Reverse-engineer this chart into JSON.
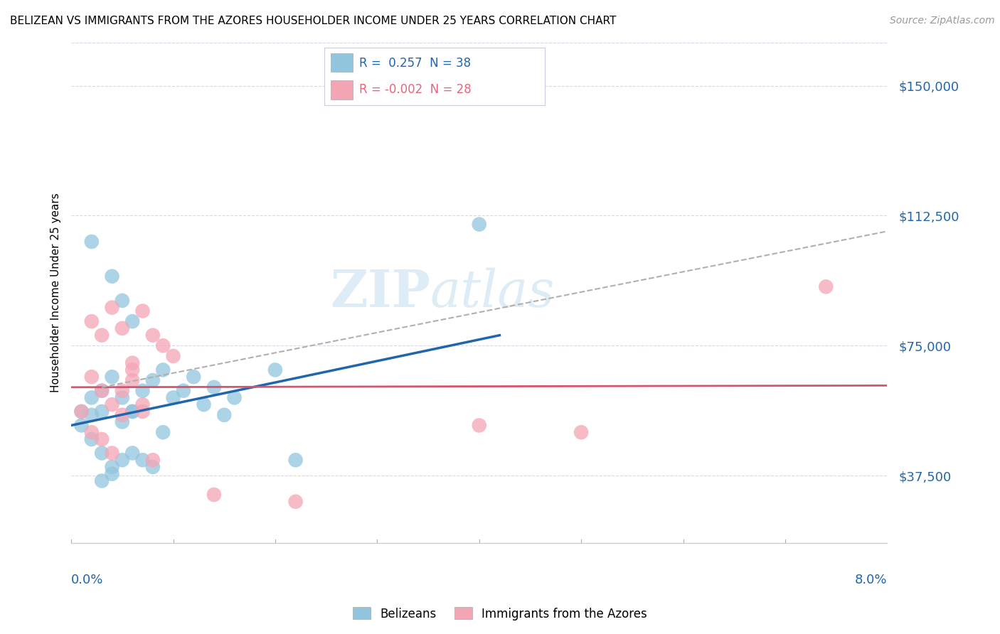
{
  "title": "BELIZEAN VS IMMIGRANTS FROM THE AZORES HOUSEHOLDER INCOME UNDER 25 YEARS CORRELATION CHART",
  "source": "Source: ZipAtlas.com",
  "ylabel": "Householder Income Under 25 years",
  "xmin": 0.0,
  "xmax": 0.08,
  "ymin": 18000,
  "ymax": 162500,
  "yticks": [
    37500,
    75000,
    112500,
    150000
  ],
  "ytick_labels": [
    "$37,500",
    "$75,000",
    "$112,500",
    "$150,000"
  ],
  "watermark_zip": "ZIP",
  "watermark_atlas": "atlas",
  "blue_color": "#92c5de",
  "blue_line_color": "#2166ac",
  "pink_color": "#f4a5b5",
  "pink_line_color": "#d6546e",
  "dashed_line_color": "#b0b0b0",
  "grid_color": "#d8d8e8",
  "belizean_points": [
    [
      0.001,
      56000
    ],
    [
      0.002,
      60000
    ],
    [
      0.003,
      62000
    ],
    [
      0.004,
      66000
    ],
    [
      0.005,
      60000
    ],
    [
      0.006,
      56000
    ],
    [
      0.007,
      62000
    ],
    [
      0.008,
      65000
    ],
    [
      0.009,
      68000
    ],
    [
      0.01,
      60000
    ],
    [
      0.011,
      62000
    ],
    [
      0.012,
      66000
    ],
    [
      0.013,
      58000
    ],
    [
      0.014,
      63000
    ],
    [
      0.015,
      55000
    ],
    [
      0.016,
      60000
    ],
    [
      0.002,
      105000
    ],
    [
      0.004,
      95000
    ],
    [
      0.005,
      88000
    ],
    [
      0.006,
      82000
    ],
    [
      0.001,
      52000
    ],
    [
      0.002,
      48000
    ],
    [
      0.003,
      44000
    ],
    [
      0.004,
      40000
    ],
    [
      0.002,
      55000
    ],
    [
      0.003,
      56000
    ],
    [
      0.005,
      53000
    ],
    [
      0.006,
      56000
    ],
    [
      0.003,
      36000
    ],
    [
      0.004,
      38000
    ],
    [
      0.005,
      42000
    ],
    [
      0.006,
      44000
    ],
    [
      0.007,
      42000
    ],
    [
      0.008,
      40000
    ],
    [
      0.009,
      50000
    ],
    [
      0.04,
      110000
    ],
    [
      0.02,
      68000
    ],
    [
      0.022,
      42000
    ]
  ],
  "azores_points": [
    [
      0.002,
      82000
    ],
    [
      0.003,
      78000
    ],
    [
      0.004,
      86000
    ],
    [
      0.005,
      80000
    ],
    [
      0.006,
      70000
    ],
    [
      0.007,
      85000
    ],
    [
      0.008,
      78000
    ],
    [
      0.009,
      75000
    ],
    [
      0.01,
      72000
    ],
    [
      0.002,
      66000
    ],
    [
      0.003,
      62000
    ],
    [
      0.004,
      58000
    ],
    [
      0.005,
      55000
    ],
    [
      0.006,
      65000
    ],
    [
      0.007,
      58000
    ],
    [
      0.001,
      56000
    ],
    [
      0.002,
      50000
    ],
    [
      0.003,
      48000
    ],
    [
      0.004,
      44000
    ],
    [
      0.005,
      62000
    ],
    [
      0.006,
      68000
    ],
    [
      0.007,
      56000
    ],
    [
      0.008,
      42000
    ],
    [
      0.074,
      92000
    ],
    [
      0.04,
      52000
    ],
    [
      0.05,
      50000
    ],
    [
      0.022,
      30000
    ],
    [
      0.014,
      32000
    ]
  ],
  "blue_line": [
    [
      0.0,
      52000
    ],
    [
      0.042,
      78000
    ]
  ],
  "pink_line": [
    [
      0.0,
      63000
    ],
    [
      0.08,
      63500
    ]
  ],
  "dashed_line": [
    [
      0.003,
      63000
    ],
    [
      0.08,
      108000
    ]
  ],
  "legend_items": [
    {
      "label": "R =  0.257  N = 38",
      "color": "#92c5de"
    },
    {
      "label": "R = -0.002  N = 28",
      "color": "#f4a5b5"
    }
  ],
  "bottom_legend": [
    {
      "label": "Belizeans",
      "color": "#92c5de"
    },
    {
      "label": "Immigrants from the Azores",
      "color": "#f4a5b5"
    }
  ]
}
